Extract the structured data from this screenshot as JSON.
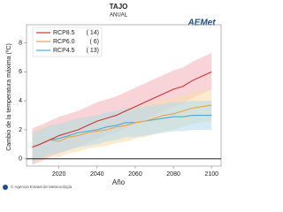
{
  "chart_data": {
    "type": "line",
    "title": "TAJO",
    "subtitle": "ANUAL",
    "y_label": "Cambio de la temperatura máxima (ºC)",
    "x_label": "Año",
    "x": [
      2006,
      2010,
      2015,
      2020,
      2025,
      2030,
      2035,
      2040,
      2045,
      2050,
      2055,
      2060,
      2065,
      2070,
      2075,
      2080,
      2085,
      2090,
      2095,
      2100
    ],
    "series": [
      {
        "name": "RCP8.5",
        "models": "( 14)",
        "color": "#cc3333",
        "band_color": "#f4b6bc",
        "values": [
          0.8,
          1.0,
          1.3,
          1.6,
          1.8,
          2.0,
          2.3,
          2.6,
          2.8,
          3.0,
          3.3,
          3.6,
          3.9,
          4.2,
          4.5,
          4.8,
          5.0,
          5.4,
          5.7,
          6.0
        ],
        "upper": [
          2.1,
          2.3,
          2.6,
          2.9,
          3.1,
          3.3,
          3.6,
          3.9,
          4.1,
          4.3,
          4.6,
          4.9,
          5.2,
          5.5,
          5.8,
          6.1,
          6.3,
          6.7,
          7.0,
          7.3
        ],
        "lower": [
          -0.4,
          -0.2,
          0.1,
          0.4,
          0.6,
          0.8,
          1.1,
          1.4,
          1.6,
          1.8,
          2.1,
          2.4,
          2.7,
          3.0,
          3.3,
          3.6,
          3.8,
          4.2,
          4.5,
          4.8
        ]
      },
      {
        "name": "RCP6.0",
        "models": "( 6)",
        "color": "#eea23a",
        "band_color": "#f9dcae",
        "values": [
          0.8,
          1.0,
          1.3,
          1.2,
          1.5,
          1.6,
          1.8,
          1.9,
          2.0,
          2.2,
          2.3,
          2.5,
          2.6,
          2.8,
          3.0,
          3.1,
          3.3,
          3.5,
          3.6,
          3.7
        ],
        "upper": [
          1.9,
          2.1,
          2.4,
          2.3,
          2.6,
          2.7,
          2.9,
          3.0,
          3.1,
          3.3,
          3.4,
          3.6,
          3.7,
          3.9,
          4.1,
          4.2,
          4.4,
          4.6,
          4.7,
          4.8
        ],
        "lower": [
          -0.3,
          -0.1,
          0.2,
          0.1,
          0.4,
          0.5,
          0.7,
          0.8,
          0.9,
          1.1,
          1.2,
          1.4,
          1.5,
          1.7,
          1.9,
          2.0,
          2.2,
          2.4,
          2.5,
          2.6
        ]
      },
      {
        "name": "RCP4.5",
        "models": "( 13)",
        "color": "#4fa6d8",
        "band_color": "#b8dcef",
        "values": [
          0.8,
          1.0,
          1.3,
          1.4,
          1.6,
          1.8,
          1.9,
          2.0,
          2.2,
          2.3,
          2.5,
          2.5,
          2.6,
          2.7,
          2.8,
          2.9,
          2.9,
          3.0,
          3.0,
          3.0
        ],
        "upper": [
          1.8,
          2.0,
          2.3,
          2.4,
          2.6,
          2.8,
          2.9,
          3.0,
          3.2,
          3.3,
          3.5,
          3.5,
          3.6,
          3.7,
          3.8,
          3.9,
          3.9,
          4.0,
          4.0,
          4.0
        ],
        "lower": [
          -0.2,
          0.0,
          0.3,
          0.4,
          0.6,
          0.8,
          0.9,
          1.0,
          1.2,
          1.3,
          1.5,
          1.5,
          1.6,
          1.7,
          1.8,
          1.9,
          1.9,
          2.0,
          2.0,
          2.0
        ]
      }
    ],
    "xlim": [
      2003,
      2105
    ],
    "ylim": [
      -0.5,
      9.25
    ],
    "xticks": [
      2020,
      2040,
      2060,
      2080,
      2100
    ],
    "yticks": [
      0,
      2,
      4,
      6,
      8
    ],
    "hline": 0
  },
  "logo": "AEMet",
  "footer": "© Agencia Estatal de Meteorología"
}
